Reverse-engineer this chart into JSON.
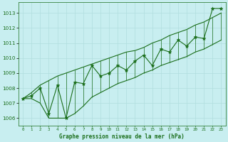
{
  "title": "Graphe pression niveau de la mer (hPa)",
  "background_color": "#c8eef0",
  "grid_color": "#b0dede",
  "line_color": "#1a6e1a",
  "x_labels": [
    "0",
    "1",
    "2",
    "3",
    "4",
    "5",
    "6",
    "7",
    "8",
    "9",
    "10",
    "11",
    "12",
    "13",
    "14",
    "15",
    "16",
    "17",
    "18",
    "19",
    "20",
    "21",
    "22",
    "23"
  ],
  "ylim": [
    1005.5,
    1013.7
  ],
  "yticks": [
    1006,
    1007,
    1008,
    1009,
    1010,
    1011,
    1012,
    1013
  ],
  "values": [
    1007.3,
    1007.5,
    1008.0,
    1006.3,
    1008.2,
    1006.0,
    1008.4,
    1008.3,
    1009.5,
    1008.8,
    1009.0,
    1009.5,
    1009.2,
    1009.8,
    1010.2,
    1009.5,
    1010.6,
    1010.4,
    1011.2,
    1010.8,
    1011.4,
    1011.3,
    1013.3,
    1013.3
  ],
  "upper_line": [
    1007.3,
    1007.7,
    1008.2,
    1008.5,
    1008.8,
    1009.0,
    1009.2,
    1009.4,
    1009.6,
    1009.8,
    1010.0,
    1010.2,
    1010.4,
    1010.5,
    1010.7,
    1011.0,
    1011.2,
    1011.5,
    1011.7,
    1011.9,
    1012.2,
    1012.4,
    1012.7,
    1013.0
  ],
  "lower_line": [
    1007.3,
    1007.3,
    1007.0,
    1006.0,
    1006.0,
    1006.0,
    1006.3,
    1006.8,
    1007.4,
    1007.7,
    1008.0,
    1008.3,
    1008.5,
    1008.7,
    1009.0,
    1009.2,
    1009.5,
    1009.7,
    1009.9,
    1010.1,
    1010.4,
    1010.6,
    1010.9,
    1011.2
  ]
}
